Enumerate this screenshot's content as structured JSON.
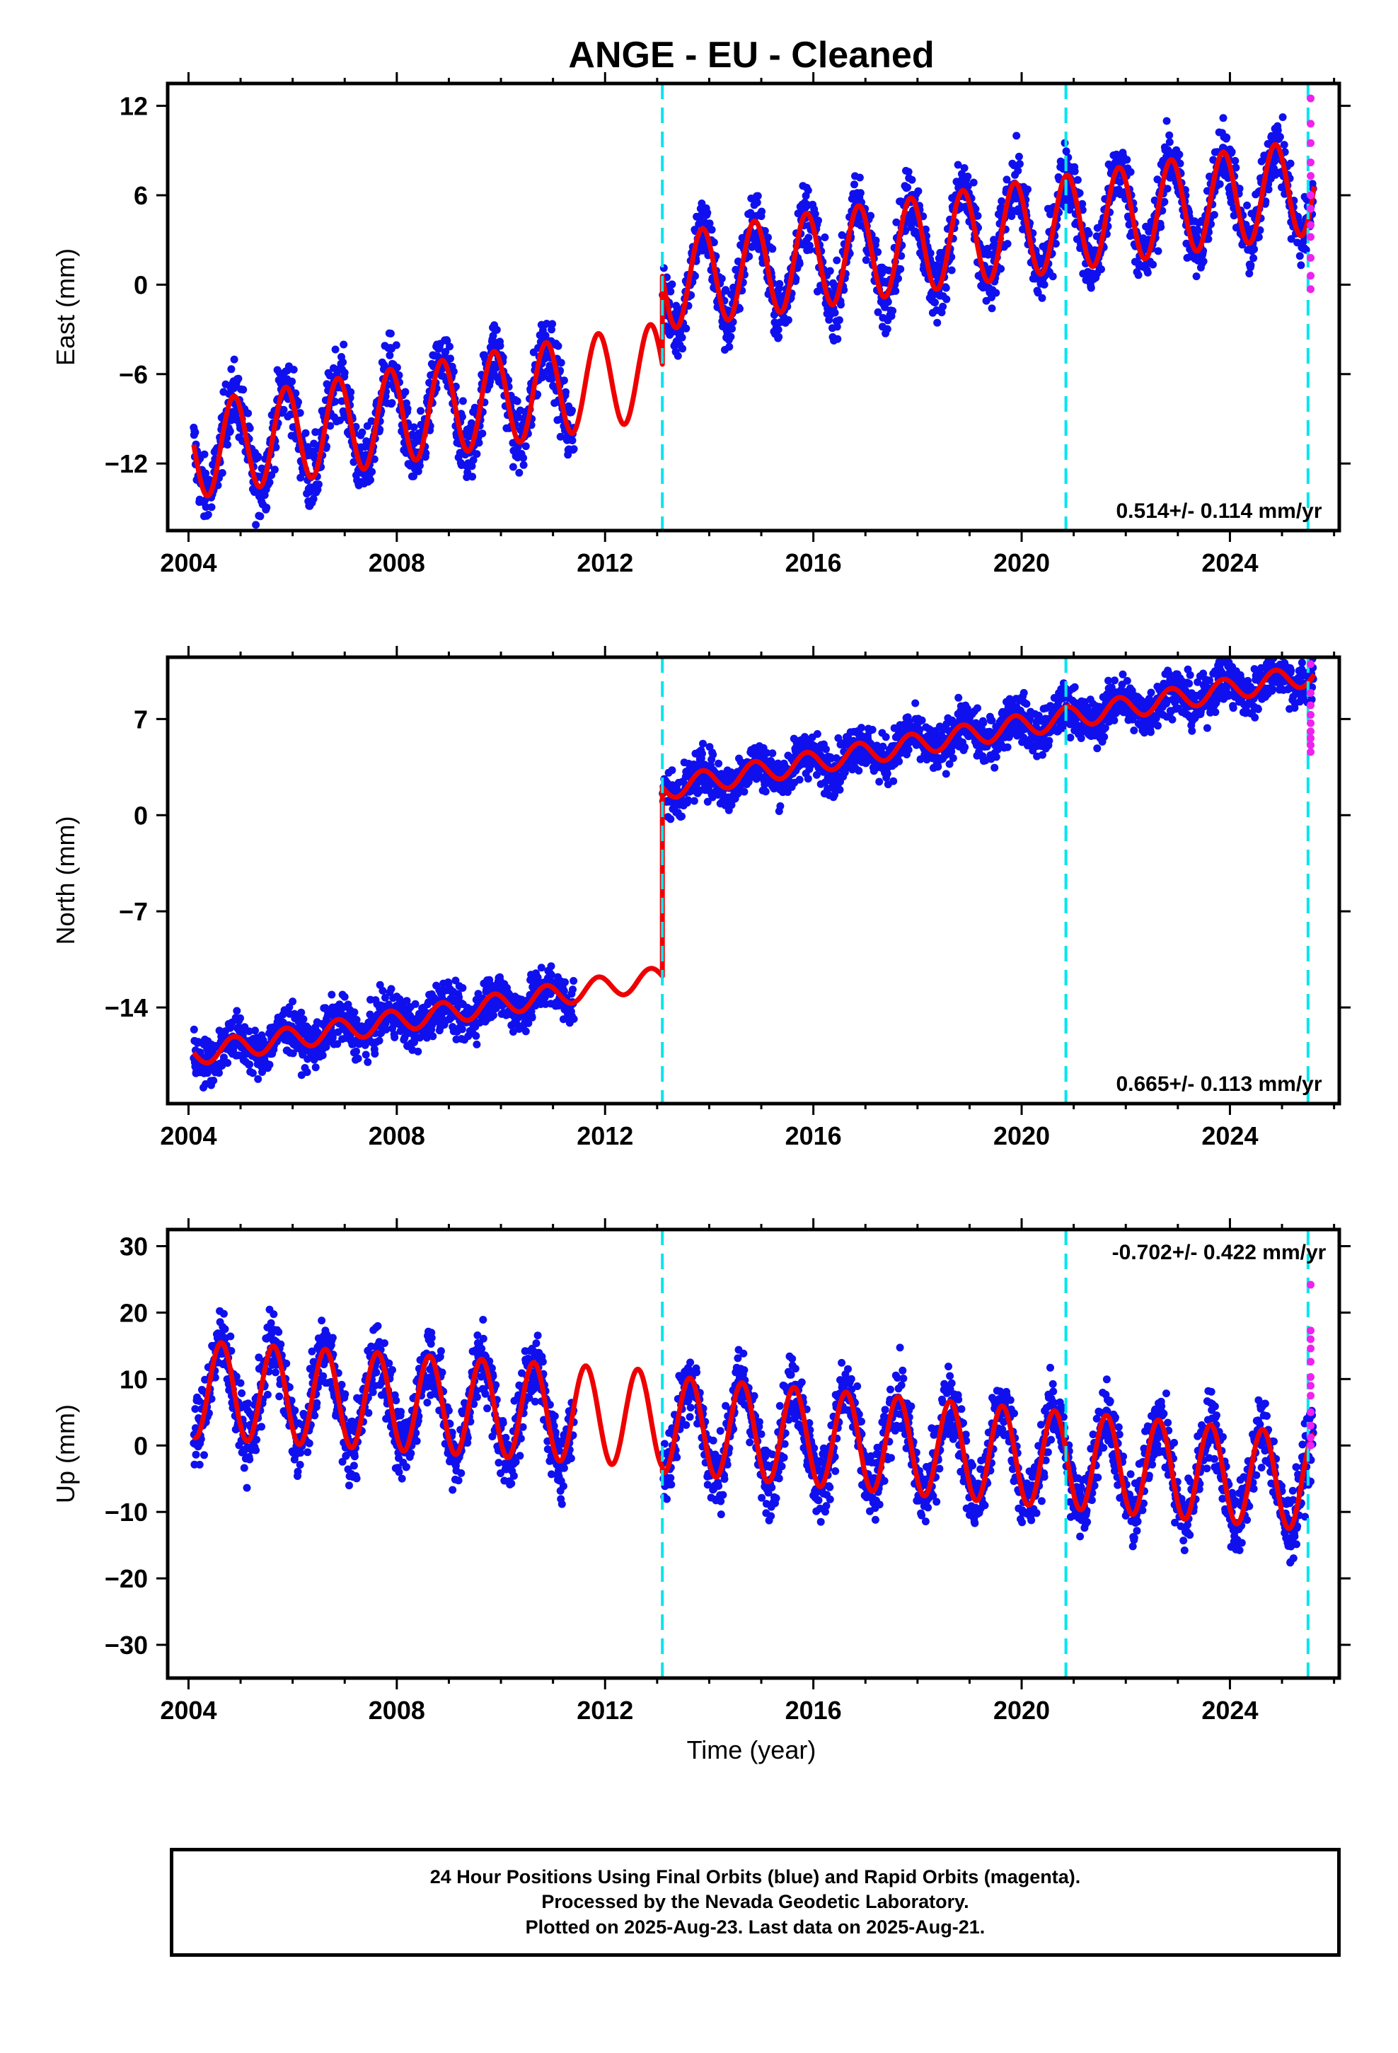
{
  "title": "ANGE  - EU - Cleaned",
  "colors": {
    "final_orbits": "#1010ee",
    "rapid_orbits": "#ee22ee",
    "model": "#ee0000",
    "offsets": "#00e5ee",
    "frame": "#000000"
  },
  "chart_data": [
    {
      "type": "scatter",
      "component": "East",
      "ylabel": "East (mm)",
      "xlabel": "",
      "xlim": [
        2003.6,
        2026.1
      ],
      "ylim": [
        -16.5,
        13.5
      ],
      "xticks": [
        2004,
        2008,
        2012,
        2016,
        2020,
        2024
      ],
      "yticks": [
        12,
        6,
        0,
        -6,
        -12
      ],
      "yticklabels": [
        "12",
        "6",
        "0",
        "−6",
        "−12"
      ],
      "rate_label": "0.514+/- 0.114 mm/yr",
      "rate_position": "bottom-right",
      "offset_epochs": [
        2013.1,
        2020.85,
        2025.5
      ],
      "data_span": [
        2004.1,
        2025.6
      ],
      "gap": [
        2011.4,
        2013.1
      ],
      "model": {
        "segments": [
          {
            "start": 2004.1,
            "end": 2013.1,
            "a": -6.4,
            "b": 0.6
          },
          {
            "start": 2013.1,
            "end": 2025.63,
            "a": -0.4,
            "b": 0.514
          }
        ],
        "annual_amplitude": 3.2,
        "annual_phase": 0.62,
        "scatter": 1.6
      },
      "rapid_points": {
        "x": 2025.55,
        "y": [
          12.5,
          10.8,
          9.5,
          8.2,
          7.3,
          6.0,
          5.1,
          4.0,
          3.2,
          1.8,
          0.6,
          -0.3
        ]
      }
    },
    {
      "type": "scatter",
      "component": "North",
      "ylabel": "North (mm)",
      "xlabel": "",
      "xlim": [
        2003.6,
        2026.1
      ],
      "ylim": [
        -21,
        11.5
      ],
      "xticks": [
        2004,
        2008,
        2012,
        2016,
        2020,
        2024
      ],
      "yticks": [
        7,
        0,
        -7,
        -14
      ],
      "yticklabels": [
        "7",
        "0",
        "−7",
        "−14"
      ],
      "rate_label": "0.665+/- 0.113 mm/yr",
      "rate_position": "bottom-right",
      "offset_epochs": [
        2013.1,
        2020.85,
        2025.5
      ],
      "data_span": [
        2004.1,
        2025.6
      ],
      "gap": [
        2011.4,
        2013.1
      ],
      "model": {
        "segments": [
          {
            "start": 2004.1,
            "end": 2013.1,
            "a": -12.5,
            "b": 0.62
          },
          {
            "start": 2013.1,
            "end": 2025.63,
            "a": 1.2,
            "b": 0.665
          }
        ],
        "annual_amplitude": 0.8,
        "annual_phase": 0.62,
        "scatter": 1.2
      },
      "rapid_points": {
        "x": 2025.55,
        "y": [
          11.0,
          8.9,
          8.0,
          7.3,
          6.7,
          6.1,
          5.6,
          5.1,
          4.6
        ]
      }
    },
    {
      "type": "scatter",
      "component": "Up",
      "ylabel": "Up (mm)",
      "xlabel": "Time (year)",
      "xlim": [
        2003.6,
        2026.1
      ],
      "ylim": [
        -35,
        32.5
      ],
      "xticks": [
        2004,
        2008,
        2012,
        2016,
        2020,
        2024
      ],
      "yticks": [
        30,
        20,
        10,
        0,
        -10,
        -20,
        -30
      ],
      "yticklabels": [
        "30",
        "20",
        "10",
        "0",
        "−10",
        "−20",
        "−30"
      ],
      "rate_label": "-0.702+/- 0.422 mm/yr",
      "rate_position": "top-right",
      "offset_epochs": [
        2013.1,
        2020.85,
        2025.5
      ],
      "data_span": [
        2004.1,
        2025.6
      ],
      "gap": [
        2011.4,
        2013.1
      ],
      "model": {
        "segments": [
          {
            "start": 2004.1,
            "end": 2013.1,
            "a": 4.5,
            "b": -0.5
          },
          {
            "start": 2013.1,
            "end": 2025.63,
            "a": 4.0,
            "b": -0.702
          }
        ],
        "annual_amplitude": 7.3,
        "annual_phase": 0.38,
        "scatter": 3.8
      },
      "rapid_points": {
        "x": 2025.55,
        "y": [
          24.2,
          17.3,
          16.0,
          14.6,
          12.6,
          10.3,
          9.0,
          7.5,
          5.0,
          3.0,
          1.2,
          0.0
        ]
      }
    }
  ],
  "caption": {
    "line1": "24 Hour Positions Using Final Orbits (blue) and Rapid Orbits (magenta).",
    "line2": "Processed by the Nevada Geodetic Laboratory.",
    "line3": "Plotted on 2025-Aug-23. Last data on 2025-Aug-21."
  }
}
